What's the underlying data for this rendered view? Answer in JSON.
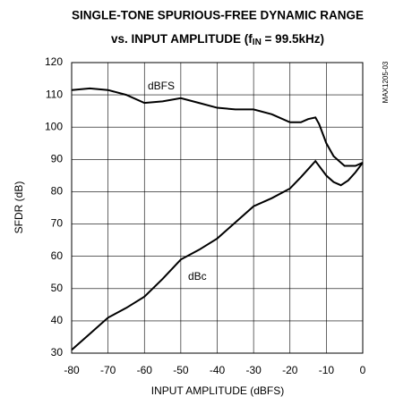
{
  "chart_data": {
    "type": "line",
    "title": "SINGLE-TONE SPURIOUS-FREE DYNAMIC RANGE",
    "subtitle": [
      "vs. INPUT AMPLITUDE (f",
      "IN",
      " = 99.5kHz)"
    ],
    "xlabel": "INPUT AMPLITUDE (dBFS)",
    "ylabel": "SFDR (dB)",
    "figure_id": "MAX1205-03",
    "xlim": [
      -80,
      0
    ],
    "ylim": [
      30,
      120
    ],
    "xticks": [
      -80,
      -70,
      -60,
      -50,
      -40,
      -30,
      -20,
      -10,
      0
    ],
    "yticks": [
      30,
      40,
      50,
      60,
      70,
      80,
      90,
      100,
      110,
      120
    ],
    "grid": true,
    "series": [
      {
        "name": "dBFS",
        "color": "#000000",
        "x": [
          -80,
          -75,
          -70,
          -65,
          -60,
          -55,
          -50,
          -45,
          -40,
          -35,
          -30,
          -25,
          -20,
          -17,
          -15,
          -13,
          -12,
          -10,
          -8,
          -5,
          -2,
          0
        ],
        "values": [
          111.5,
          112,
          111.5,
          110,
          107.5,
          108,
          109,
          107.5,
          106,
          105.5,
          105.5,
          104,
          101.5,
          101.5,
          102.5,
          103,
          101,
          95,
          91,
          88,
          88,
          89
        ]
      },
      {
        "name": "dBc",
        "color": "#000000",
        "x": [
          -80,
          -75,
          -70,
          -65,
          -60,
          -55,
          -50,
          -45,
          -40,
          -35,
          -30,
          -25,
          -20,
          -17,
          -15,
          -13,
          -12,
          -10,
          -8,
          -6,
          -4,
          -2,
          0
        ],
        "values": [
          31,
          36,
          41,
          44,
          47.5,
          53,
          59,
          62,
          65.5,
          70.5,
          75.5,
          78,
          81,
          84.5,
          87,
          89.5,
          88,
          85,
          83,
          82,
          83.5,
          86,
          89
        ]
      }
    ]
  }
}
